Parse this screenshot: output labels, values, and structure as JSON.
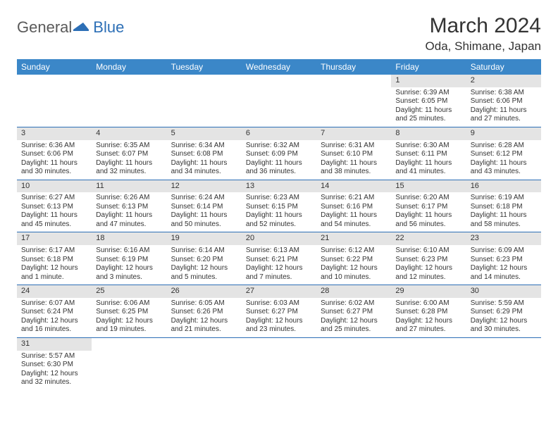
{
  "logo": {
    "text1": "General",
    "text2": "Blue"
  },
  "title": "March 2024",
  "location": "Oda, Shimane, Japan",
  "colors": {
    "header_bg": "#3b87c8",
    "row_divider": "#2d6fb6",
    "daynum_bg": "#e4e4e4",
    "text": "#333333",
    "logo_gray": "#5a5a5a",
    "logo_blue": "#2d6fb6"
  },
  "weekdays": [
    "Sunday",
    "Monday",
    "Tuesday",
    "Wednesday",
    "Thursday",
    "Friday",
    "Saturday"
  ],
  "weeks": [
    [
      null,
      null,
      null,
      null,
      null,
      {
        "d": "1",
        "sr": "Sunrise: 6:39 AM",
        "ss": "Sunset: 6:05 PM",
        "dl1": "Daylight: 11 hours",
        "dl2": "and 25 minutes."
      },
      {
        "d": "2",
        "sr": "Sunrise: 6:38 AM",
        "ss": "Sunset: 6:06 PM",
        "dl1": "Daylight: 11 hours",
        "dl2": "and 27 minutes."
      }
    ],
    [
      {
        "d": "3",
        "sr": "Sunrise: 6:36 AM",
        "ss": "Sunset: 6:06 PM",
        "dl1": "Daylight: 11 hours",
        "dl2": "and 30 minutes."
      },
      {
        "d": "4",
        "sr": "Sunrise: 6:35 AM",
        "ss": "Sunset: 6:07 PM",
        "dl1": "Daylight: 11 hours",
        "dl2": "and 32 minutes."
      },
      {
        "d": "5",
        "sr": "Sunrise: 6:34 AM",
        "ss": "Sunset: 6:08 PM",
        "dl1": "Daylight: 11 hours",
        "dl2": "and 34 minutes."
      },
      {
        "d": "6",
        "sr": "Sunrise: 6:32 AM",
        "ss": "Sunset: 6:09 PM",
        "dl1": "Daylight: 11 hours",
        "dl2": "and 36 minutes."
      },
      {
        "d": "7",
        "sr": "Sunrise: 6:31 AM",
        "ss": "Sunset: 6:10 PM",
        "dl1": "Daylight: 11 hours",
        "dl2": "and 38 minutes."
      },
      {
        "d": "8",
        "sr": "Sunrise: 6:30 AM",
        "ss": "Sunset: 6:11 PM",
        "dl1": "Daylight: 11 hours",
        "dl2": "and 41 minutes."
      },
      {
        "d": "9",
        "sr": "Sunrise: 6:28 AM",
        "ss": "Sunset: 6:12 PM",
        "dl1": "Daylight: 11 hours",
        "dl2": "and 43 minutes."
      }
    ],
    [
      {
        "d": "10",
        "sr": "Sunrise: 6:27 AM",
        "ss": "Sunset: 6:13 PM",
        "dl1": "Daylight: 11 hours",
        "dl2": "and 45 minutes."
      },
      {
        "d": "11",
        "sr": "Sunrise: 6:26 AM",
        "ss": "Sunset: 6:13 PM",
        "dl1": "Daylight: 11 hours",
        "dl2": "and 47 minutes."
      },
      {
        "d": "12",
        "sr": "Sunrise: 6:24 AM",
        "ss": "Sunset: 6:14 PM",
        "dl1": "Daylight: 11 hours",
        "dl2": "and 50 minutes."
      },
      {
        "d": "13",
        "sr": "Sunrise: 6:23 AM",
        "ss": "Sunset: 6:15 PM",
        "dl1": "Daylight: 11 hours",
        "dl2": "and 52 minutes."
      },
      {
        "d": "14",
        "sr": "Sunrise: 6:21 AM",
        "ss": "Sunset: 6:16 PM",
        "dl1": "Daylight: 11 hours",
        "dl2": "and 54 minutes."
      },
      {
        "d": "15",
        "sr": "Sunrise: 6:20 AM",
        "ss": "Sunset: 6:17 PM",
        "dl1": "Daylight: 11 hours",
        "dl2": "and 56 minutes."
      },
      {
        "d": "16",
        "sr": "Sunrise: 6:19 AM",
        "ss": "Sunset: 6:18 PM",
        "dl1": "Daylight: 11 hours",
        "dl2": "and 58 minutes."
      }
    ],
    [
      {
        "d": "17",
        "sr": "Sunrise: 6:17 AM",
        "ss": "Sunset: 6:18 PM",
        "dl1": "Daylight: 12 hours",
        "dl2": "and 1 minute."
      },
      {
        "d": "18",
        "sr": "Sunrise: 6:16 AM",
        "ss": "Sunset: 6:19 PM",
        "dl1": "Daylight: 12 hours",
        "dl2": "and 3 minutes."
      },
      {
        "d": "19",
        "sr": "Sunrise: 6:14 AM",
        "ss": "Sunset: 6:20 PM",
        "dl1": "Daylight: 12 hours",
        "dl2": "and 5 minutes."
      },
      {
        "d": "20",
        "sr": "Sunrise: 6:13 AM",
        "ss": "Sunset: 6:21 PM",
        "dl1": "Daylight: 12 hours",
        "dl2": "and 7 minutes."
      },
      {
        "d": "21",
        "sr": "Sunrise: 6:12 AM",
        "ss": "Sunset: 6:22 PM",
        "dl1": "Daylight: 12 hours",
        "dl2": "and 10 minutes."
      },
      {
        "d": "22",
        "sr": "Sunrise: 6:10 AM",
        "ss": "Sunset: 6:23 PM",
        "dl1": "Daylight: 12 hours",
        "dl2": "and 12 minutes."
      },
      {
        "d": "23",
        "sr": "Sunrise: 6:09 AM",
        "ss": "Sunset: 6:23 PM",
        "dl1": "Daylight: 12 hours",
        "dl2": "and 14 minutes."
      }
    ],
    [
      {
        "d": "24",
        "sr": "Sunrise: 6:07 AM",
        "ss": "Sunset: 6:24 PM",
        "dl1": "Daylight: 12 hours",
        "dl2": "and 16 minutes."
      },
      {
        "d": "25",
        "sr": "Sunrise: 6:06 AM",
        "ss": "Sunset: 6:25 PM",
        "dl1": "Daylight: 12 hours",
        "dl2": "and 19 minutes."
      },
      {
        "d": "26",
        "sr": "Sunrise: 6:05 AM",
        "ss": "Sunset: 6:26 PM",
        "dl1": "Daylight: 12 hours",
        "dl2": "and 21 minutes."
      },
      {
        "d": "27",
        "sr": "Sunrise: 6:03 AM",
        "ss": "Sunset: 6:27 PM",
        "dl1": "Daylight: 12 hours",
        "dl2": "and 23 minutes."
      },
      {
        "d": "28",
        "sr": "Sunrise: 6:02 AM",
        "ss": "Sunset: 6:27 PM",
        "dl1": "Daylight: 12 hours",
        "dl2": "and 25 minutes."
      },
      {
        "d": "29",
        "sr": "Sunrise: 6:00 AM",
        "ss": "Sunset: 6:28 PM",
        "dl1": "Daylight: 12 hours",
        "dl2": "and 27 minutes."
      },
      {
        "d": "30",
        "sr": "Sunrise: 5:59 AM",
        "ss": "Sunset: 6:29 PM",
        "dl1": "Daylight: 12 hours",
        "dl2": "and 30 minutes."
      }
    ],
    [
      {
        "d": "31",
        "sr": "Sunrise: 5:57 AM",
        "ss": "Sunset: 6:30 PM",
        "dl1": "Daylight: 12 hours",
        "dl2": "and 32 minutes."
      },
      null,
      null,
      null,
      null,
      null,
      null
    ]
  ]
}
